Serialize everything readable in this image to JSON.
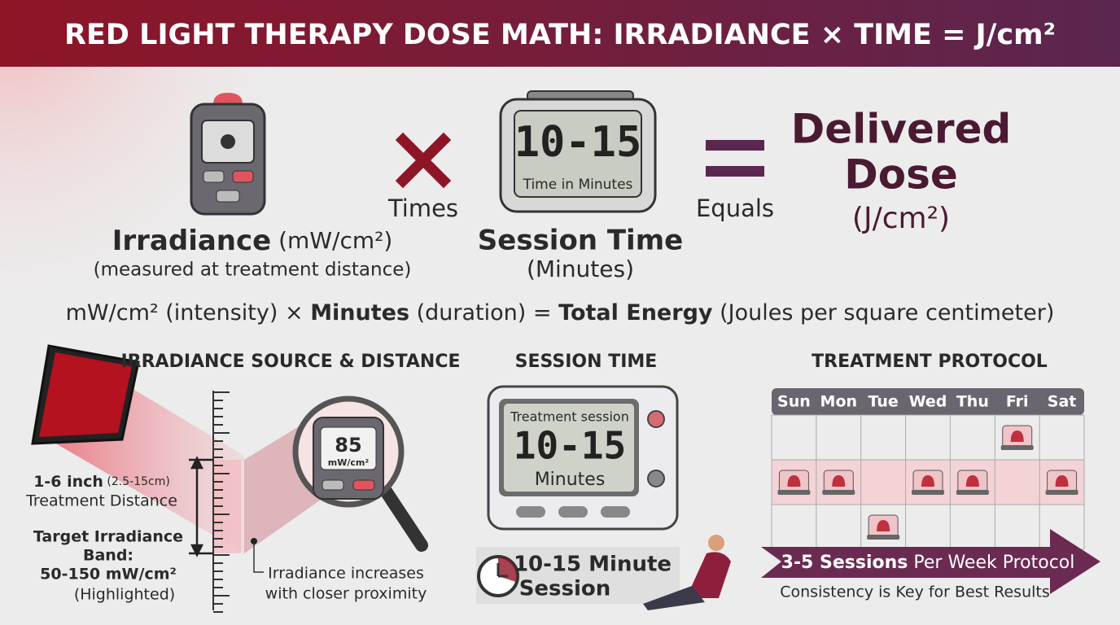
{
  "header": {
    "title": "RED LIGHT THERAPY DOSE MATH: IRRADIANCE × TIME = J/cm²"
  },
  "formula": {
    "irradiance": {
      "label": "Irradiance",
      "unit": " (mW/cm²)",
      "note": "(measured at treatment distance)"
    },
    "times": "Times",
    "session": {
      "display": "10-15",
      "display_caption": "Time in Minutes",
      "label": "Session Time",
      "unit": "(Minutes)"
    },
    "equals": "Equals",
    "result": {
      "line1": "Delivered",
      "line2": "Dose",
      "unit": "(J/cm²)"
    }
  },
  "equation": {
    "parts": [
      {
        "text": "mW/cm² (intensity) × ",
        "bold": false
      },
      {
        "text": "Minutes",
        "bold": true
      },
      {
        "text": " (duration) = ",
        "bold": false
      },
      {
        "text": "Total Energy",
        "bold": true
      },
      {
        "text": " (Joules per square centimeter)",
        "bold": false
      }
    ]
  },
  "source": {
    "title": "IRRADIANCE SOURCE & DISTANCE",
    "meter_value": "85",
    "meter_unit": "mW/cm²",
    "distance": "1-6 inch",
    "distance_metric": " (2.5-15cm)",
    "distance_label": "Treatment Distance",
    "band_lines": [
      "Target Irradiance",
      "Band:",
      "50-150 mW/cm²"
    ],
    "band_note": "(Highlighted)",
    "proximity_lines": [
      "Irradiance increases",
      "with closer proximity"
    ]
  },
  "session_time": {
    "title": "SESSION TIME",
    "screen_caption": "Treatment session",
    "display": "10-15",
    "screen_unit": "Minutes",
    "banner_lines": [
      "10-15 Minute",
      "Session"
    ]
  },
  "protocol": {
    "title": "TREATMENT PROTOCOL",
    "days": [
      "Sun",
      "Mon",
      "Tue",
      "Wed",
      "Thu",
      "Fri",
      "Sat"
    ],
    "banner_bold": "3-5 Sessions",
    "banner_rest": " Per Week Protocol",
    "footer": "Consistency is Key for Best Results"
  }
}
